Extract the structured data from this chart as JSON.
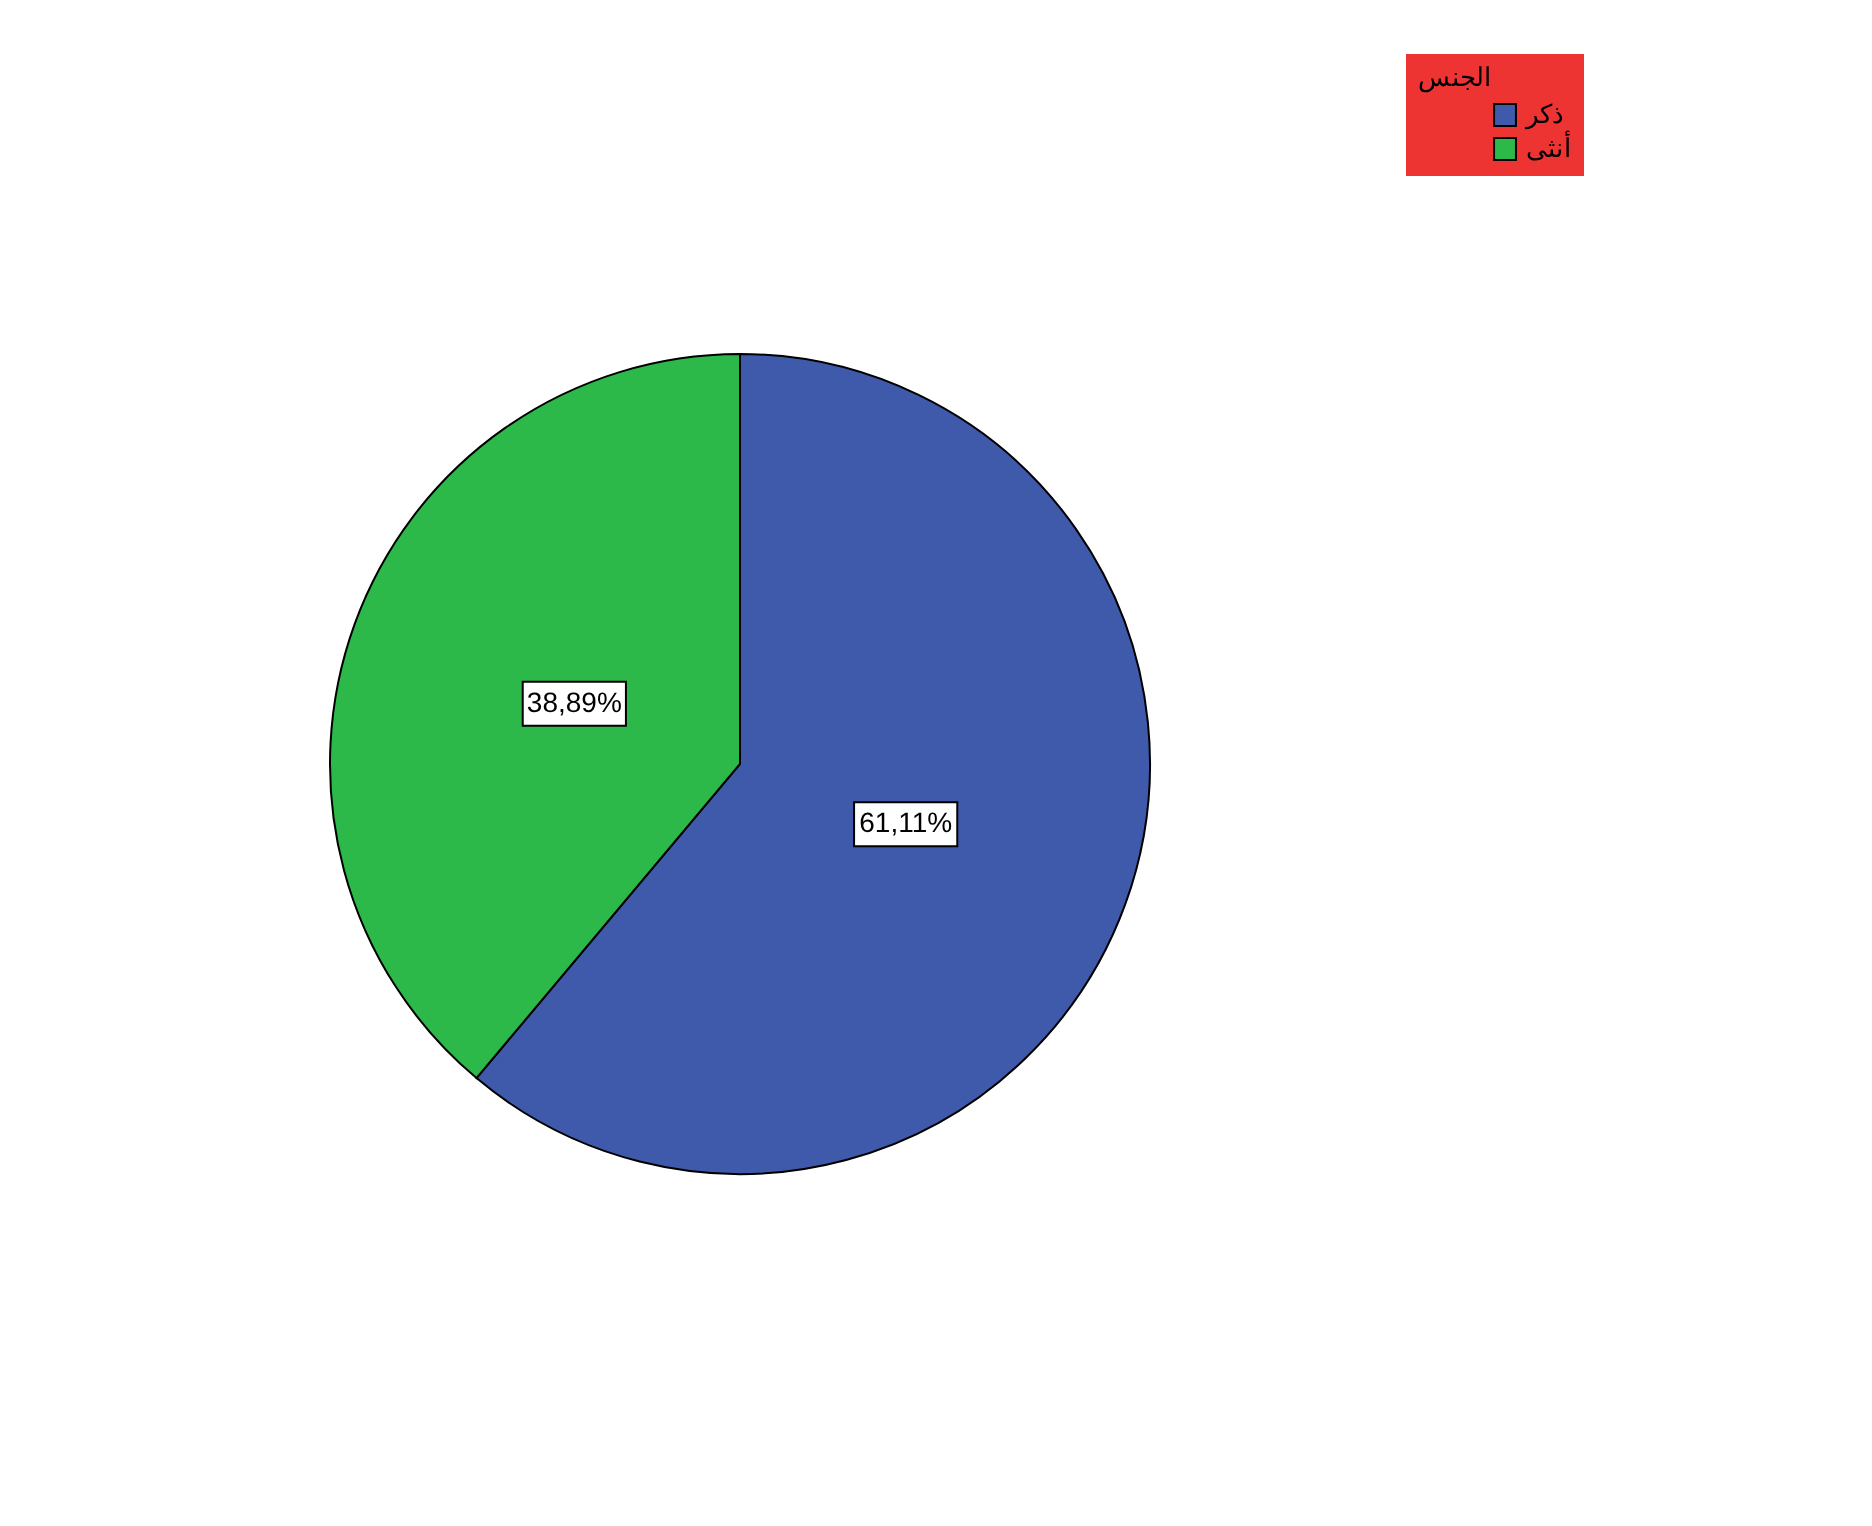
{
  "chart_data": {
    "type": "pie",
    "legend_title": "الجنس",
    "legend": "top right",
    "categories": [
      "ذكر",
      "أنثى"
    ],
    "values": [
      61.11,
      38.89
    ],
    "colors": [
      "#3f59ab",
      "#2db84a"
    ],
    "value_labels": [
      "61,11%",
      "38,89%"
    ]
  }
}
